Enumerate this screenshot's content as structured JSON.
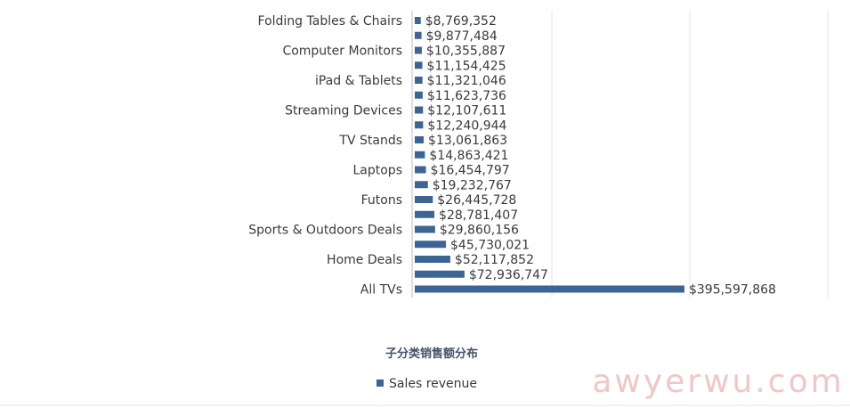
{
  "chart_data": {
    "type": "bar",
    "orientation": "horizontal",
    "categories": [
      "Folding Tables & Chairs",
      "",
      "Computer Monitors",
      "",
      "iPad & Tablets",
      "",
      "Streaming Devices",
      "",
      "TV Stands",
      "",
      "Laptops",
      "",
      "Futons",
      "",
      "Sports & Outdoors Deals",
      "",
      "Home Deals",
      "",
      "All TVs"
    ],
    "values": [
      8769352,
      9877484,
      10355887,
      11154425,
      11321046,
      11623736,
      12107611,
      12240944,
      13061863,
      14863421,
      16454797,
      19232767,
      26445728,
      28781407,
      29860156,
      45730021,
      52117852,
      72936747,
      395597868
    ],
    "data_labels": [
      "$8,769,352",
      "$9,877,484",
      "$10,355,887",
      "$11,154,425",
      "$11,321,046",
      "$11,623,736",
      "$12,107,611",
      "$12,240,944",
      "$13,061,863",
      "$14,863,421",
      "$16,454,797",
      "$19,232,767",
      "$26,445,728",
      "$28,781,407",
      "$29,860,156",
      "$45,730,021",
      "$52,117,852",
      "$72,936,747",
      "$395,597,868"
    ],
    "series": [
      {
        "name": "Sales revenue"
      }
    ],
    "xlabel": "子分类销售额分布",
    "ylabel": "",
    "xlim": [
      0,
      500000000
    ],
    "grid": true,
    "legend": "bottom",
    "colors": {
      "bar": "#3c6596"
    }
  },
  "watermark": "awyerwu.com"
}
